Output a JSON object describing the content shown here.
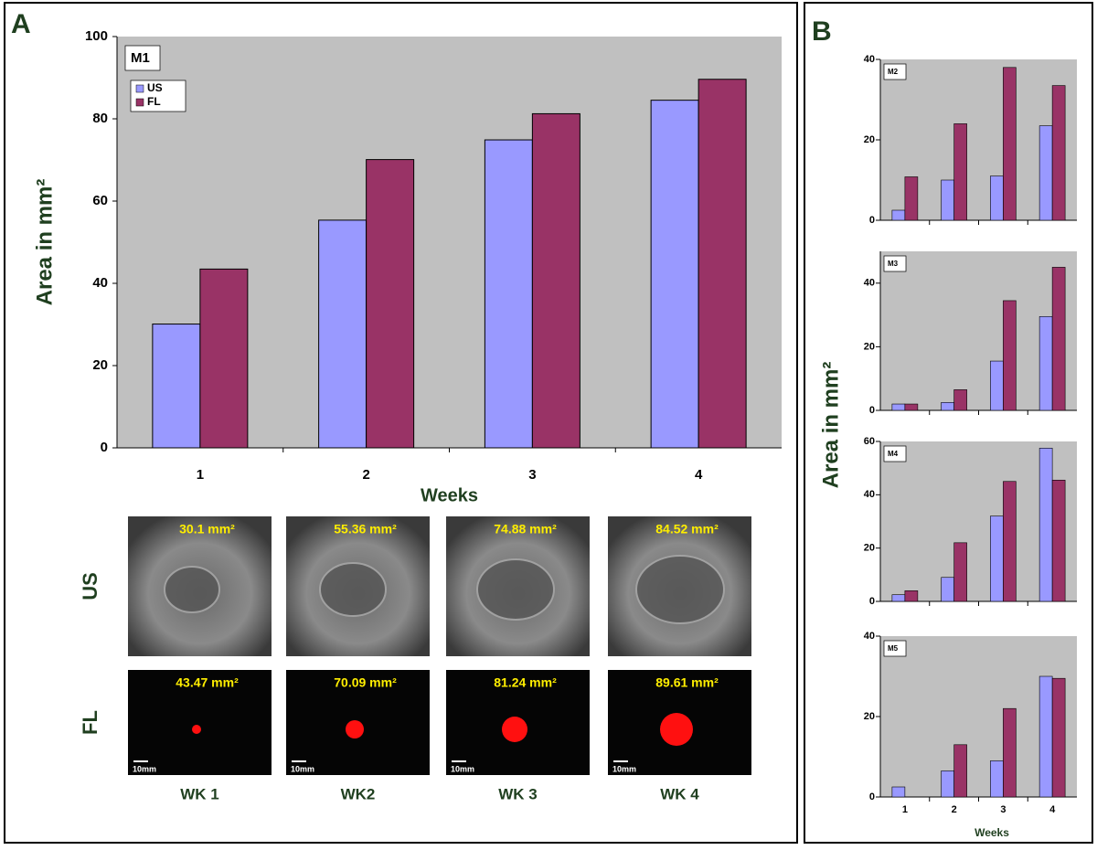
{
  "panel_a": {
    "label": "A"
  },
  "panel_b": {
    "label": "B",
    "xlabel": "Weeks",
    "ylabel": "Area in mm²"
  },
  "chart_data": [
    {
      "type": "bar",
      "title": "M1",
      "xlabel": "Weeks",
      "ylabel": "Area in mm²",
      "categories": [
        "1",
        "2",
        "3",
        "4"
      ],
      "series": [
        {
          "name": "US",
          "color": "#9999ff",
          "values": [
            30.1,
            55.36,
            74.88,
            84.52
          ]
        },
        {
          "name": "FL",
          "color": "#993366",
          "values": [
            43.47,
            70.09,
            81.24,
            89.61
          ]
        }
      ],
      "ylim": [
        0,
        100
      ],
      "yticks": [
        0,
        20,
        40,
        60,
        80,
        100
      ]
    },
    {
      "type": "bar",
      "title": "M2",
      "categories": [
        null,
        null,
        null,
        null
      ],
      "series": [
        {
          "color": "#9999ff",
          "values": [
            2.5,
            10,
            11,
            23.5
          ]
        },
        {
          "color": "#993366",
          "values": [
            10.8,
            24,
            38,
            33.5
          ]
        }
      ],
      "ylim": [
        0,
        40
      ],
      "yticks": [
        0,
        20,
        40
      ]
    },
    {
      "type": "bar",
      "title": "M3",
      "categories": [
        null,
        null,
        null,
        null
      ],
      "series": [
        {
          "color": "#9999ff",
          "values": [
            2,
            2.5,
            15.5,
            29.5
          ]
        },
        {
          "color": "#993366",
          "values": [
            2,
            6.5,
            34.5,
            45
          ]
        }
      ],
      "ylim": [
        0,
        50
      ],
      "yticks": [
        0,
        20,
        40
      ]
    },
    {
      "type": "bar",
      "title": "M4",
      "categories": [
        null,
        null,
        null,
        null
      ],
      "series": [
        {
          "color": "#9999ff",
          "values": [
            2.5,
            9,
            32,
            57.5
          ]
        },
        {
          "color": "#993366",
          "values": [
            4,
            22,
            45,
            45.5
          ]
        }
      ],
      "ylim": [
        0,
        60
      ],
      "yticks": [
        0,
        20,
        40,
        60
      ]
    },
    {
      "type": "bar",
      "title": "M5",
      "categories": [
        "1",
        "2",
        "3",
        "4"
      ],
      "series": [
        {
          "color": "#9999ff",
          "values": [
            2.5,
            6.5,
            9,
            30
          ]
        },
        {
          "color": "#993366",
          "values": [
            0,
            13,
            22,
            29.5
          ]
        }
      ],
      "ylim": [
        0,
        40
      ],
      "yticks": [
        0,
        20,
        40
      ]
    }
  ],
  "images": {
    "rows": [
      {
        "label": "US",
        "areas": [
          "30.1 mm²",
          "55.36 mm²",
          "74.88 mm²",
          "84.52 mm²"
        ]
      },
      {
        "label": "FL",
        "areas": [
          "43.47 mm²",
          "70.09 mm²",
          "81.24 mm²",
          "89.61 mm²"
        ],
        "scale": "10mm"
      }
    ],
    "columns": [
      "WK 1",
      "WK2",
      "WK 3",
      "WK 4"
    ]
  }
}
